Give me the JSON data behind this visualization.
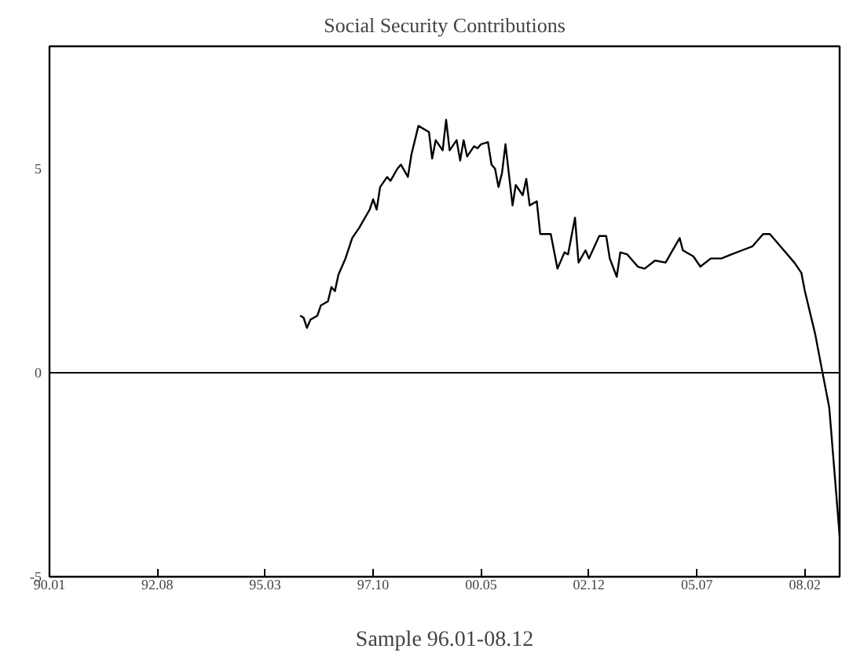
{
  "chart_data": {
    "type": "line",
    "title": "Social Security Contributions",
    "xlabel": "Sample 96.01-08.12",
    "x": [
      "1996-01",
      "1996-02",
      "1996-03",
      "1996-04",
      "1996-06",
      "1996-07",
      "1996-09",
      "1996-10",
      "1996-11",
      "1996-12",
      "1997-02",
      "1997-04",
      "1997-06",
      "1997-09",
      "1997-10",
      "1997-11",
      "1997-12",
      "1998-02",
      "1998-03",
      "1998-05",
      "1998-06",
      "1998-08",
      "1998-09",
      "1998-11",
      "1999-02",
      "1999-03",
      "1999-04",
      "1999-06",
      "1999-07",
      "1999-08",
      "1999-10",
      "1999-11",
      "1999-12",
      "2000-01",
      "2000-03",
      "2000-04",
      "2000-05",
      "2000-07",
      "2000-08",
      "2000-09",
      "2000-10",
      "2000-11",
      "2000-12",
      "2001-02",
      "2001-03",
      "2001-05",
      "2001-06",
      "2001-07",
      "2001-09",
      "2001-10",
      "2001-11",
      "2002-01",
      "2002-03",
      "2002-05",
      "2002-06",
      "2002-08",
      "2002-09",
      "2002-11",
      "2002-12",
      "2003-03",
      "2003-05",
      "2003-06",
      "2003-08",
      "2003-09",
      "2003-11",
      "2004-02",
      "2004-04",
      "2004-07",
      "2004-10",
      "2005-02",
      "2005-03",
      "2005-06",
      "2005-08",
      "2005-11",
      "2006-02",
      "2006-05",
      "2006-08",
      "2006-11",
      "2007-02",
      "2007-04",
      "2007-07",
      "2007-11",
      "2008-01",
      "2008-02",
      "2008-05",
      "2008-07",
      "2008-09",
      "2008-12"
    ],
    "series": [
      {
        "color": "#000000",
        "values": [
          1.4,
          1.35,
          1.1,
          1.3,
          1.4,
          1.65,
          1.75,
          2.1,
          2.0,
          2.4,
          2.8,
          3.3,
          3.55,
          4.0,
          4.25,
          4.0,
          4.55,
          4.8,
          4.7,
          5.0,
          5.1,
          4.8,
          5.35,
          6.05,
          5.9,
          5.25,
          5.7,
          5.45,
          6.2,
          5.45,
          5.7,
          5.2,
          5.7,
          5.3,
          5.55,
          5.5,
          5.6,
          5.65,
          5.1,
          5.0,
          4.55,
          4.9,
          5.6,
          4.1,
          4.6,
          4.35,
          4.75,
          4.1,
          4.2,
          3.4,
          3.4,
          3.4,
          2.55,
          2.95,
          2.9,
          3.8,
          2.7,
          3.0,
          2.8,
          3.35,
          3.35,
          2.8,
          2.35,
          2.95,
          2.9,
          2.6,
          2.55,
          2.75,
          2.7,
          3.3,
          3.0,
          2.85,
          2.6,
          2.8,
          2.8,
          2.9,
          3.0,
          3.1,
          3.4,
          3.4,
          3.1,
          2.7,
          2.45,
          2.0,
          0.95,
          0.05,
          -0.85,
          -4.0
        ]
      }
    ],
    "xlim": [
      "1990-01",
      "2008-12"
    ],
    "xticks": [
      {
        "value": "1990-01",
        "label": "90.01"
      },
      {
        "value": "1992-08",
        "label": "92.08"
      },
      {
        "value": "1995-03",
        "label": "95.03"
      },
      {
        "value": "1997-10",
        "label": "97.10"
      },
      {
        "value": "2000-05",
        "label": "00.05"
      },
      {
        "value": "2002-12",
        "label": "02.12"
      },
      {
        "value": "2005-07",
        "label": "05.07"
      },
      {
        "value": "2008-02",
        "label": "08.02"
      }
    ],
    "ylim": [
      -5,
      8
    ],
    "yticks": [
      -5,
      0,
      5
    ],
    "ref_lines": [
      {
        "axis": "y",
        "value": 0,
        "color": "#000000"
      }
    ],
    "grid": false,
    "marker": "none",
    "line_style": "solid"
  }
}
